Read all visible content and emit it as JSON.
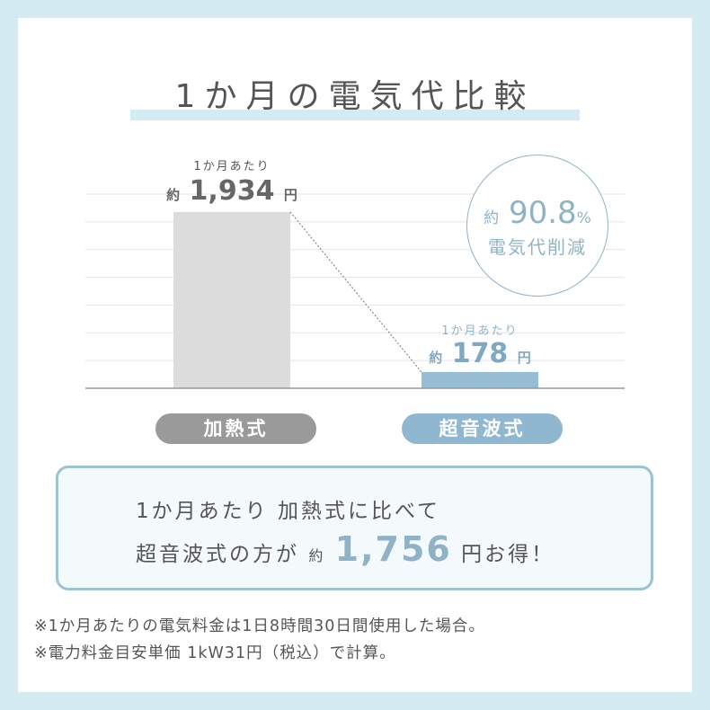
{
  "title": "1か月の電気代比較",
  "colors": {
    "background": "#d3ebf1",
    "heating_bar": "#dcdcdc",
    "ultrasonic_bar": "#97bdd4",
    "heating_pill": "#9a9a9a",
    "ultrasonic_pill": "#8fb8d0",
    "accent": "#8fb3c6"
  },
  "chart_data": {
    "type": "bar",
    "categories": [
      "加熱式",
      "超音波式"
    ],
    "values": [
      1934,
      178
    ],
    "unit": "円",
    "ylim": [
      0,
      2130
    ],
    "grid": true,
    "data_labels": [
      {
        "per": "1か月あたり",
        "prefix": "約",
        "value": "1,934",
        "unit": "円"
      },
      {
        "per": "1か月あたり",
        "prefix": "約",
        "value": "178",
        "unit": "円"
      }
    ]
  },
  "reduction": {
    "prefix": "約",
    "value": "90.8",
    "unit": "%",
    "label": "電気代削減"
  },
  "summary": {
    "line1": "1か月あたり 加熱式に比べて",
    "line2_pre": "超音波式の方が",
    "prefix": "約",
    "value": "1,756",
    "line2_post": "円お得！"
  },
  "notes": [
    "※1か月あたりの電気料金は1日8時間30日間使用した場合。",
    "※電力料金目安単価 1kW31円（税込）で計算。"
  ]
}
